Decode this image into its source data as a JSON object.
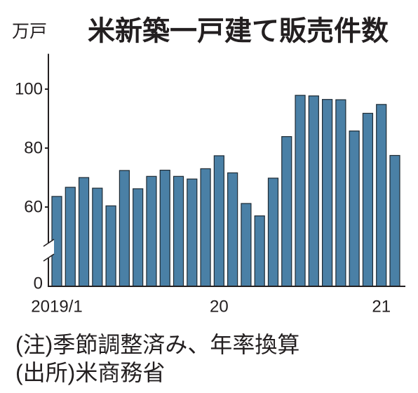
{
  "chart_data": {
    "type": "bar",
    "title": "米新築一戸建て販売件数",
    "unit_label": "万戸",
    "x": [
      "2019/1",
      "2019/2",
      "2019/3",
      "2019/4",
      "2019/5",
      "2019/6",
      "2019/7",
      "2019/8",
      "2019/9",
      "2019/10",
      "2019/11",
      "2019/12",
      "2020/1",
      "2020/2",
      "2020/3",
      "2020/4",
      "2020/5",
      "2020/6",
      "2020/7",
      "2020/8",
      "2020/9",
      "2020/10",
      "2020/11",
      "2020/12",
      "2021/1",
      "2021/2"
    ],
    "values": [
      63.6,
      66.7,
      70.0,
      66.4,
      60.4,
      72.4,
      66.2,
      70.4,
      72.5,
      70.4,
      69.5,
      73.0,
      77.4,
      71.6,
      61.2,
      57.0,
      69.8,
      83.9,
      97.9,
      97.7,
      96.5,
      96.4,
      85.8,
      91.8,
      94.8,
      77.5
    ],
    "x_ticks": [
      {
        "x": "2019/1",
        "label": "2019/1"
      },
      {
        "x": "2020/1",
        "label": "20"
      },
      {
        "x": "2021/1",
        "label": "21"
      }
    ],
    "yticks": [
      0,
      60,
      80,
      100
    ],
    "ylim": [
      0,
      112
    ],
    "y_axis_break": true,
    "grid": false,
    "colors": {
      "bar": "#4a80a6",
      "bar_outline": "#1e2a33",
      "axis": "#231f20"
    }
  },
  "footnotes": {
    "note": "(注)季節調整済み、年率換算",
    "source": "(出所)米商務省"
  }
}
